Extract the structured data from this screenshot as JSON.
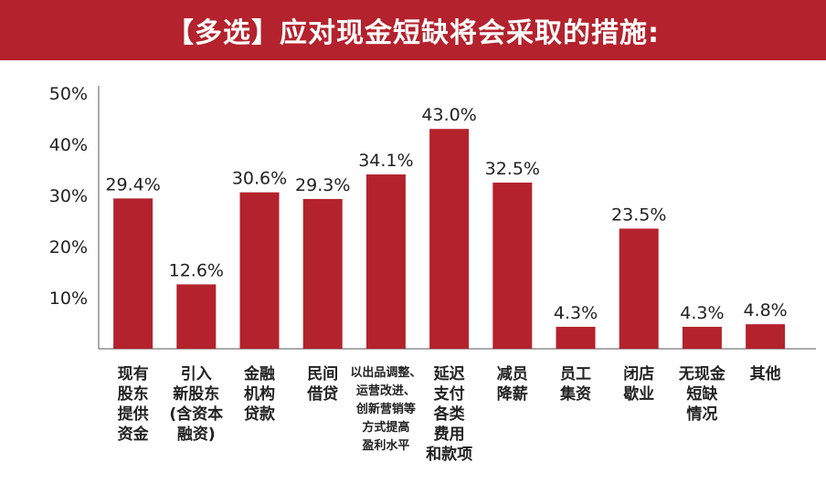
{
  "title": "【多选】应对现金短缺将会采取的措施:",
  "colors": {
    "header_bg": "#b3222d",
    "bar": "#b3222d",
    "axis": "#555555"
  },
  "chart_data": {
    "type": "bar",
    "title": "【多选】应对现金短缺将会采取的措施:",
    "xlabel": "",
    "ylabel": "",
    "ylim": [
      0,
      50
    ],
    "yticks": [
      "10%",
      "20%",
      "30%",
      "40%",
      "50%"
    ],
    "categories": [
      "现有股东提供资金",
      "引入新股东(含资本融资)",
      "金融机构贷款",
      "民间借贷",
      "以出品调整、运营改进、创新营销等方式提高盈利水平",
      "延迟支付各类费用和款项",
      "减员降薪",
      "员工集资",
      "闭店歇业",
      "无现金短缺情况",
      "其他"
    ],
    "category_lines": [
      [
        "现有",
        "股东",
        "提供",
        "资金"
      ],
      [
        "引入",
        "新股东",
        "(含资本",
        "融资)"
      ],
      [
        "金融",
        "机构",
        "贷款"
      ],
      [
        "民间",
        "借贷"
      ],
      [
        "以出品调整、",
        "运营改进、",
        "创新营销等",
        "方式提高",
        "盈利水平"
      ],
      [
        "延迟",
        "支付",
        "各类",
        "费用",
        "和款项"
      ],
      [
        "减员",
        "降薪"
      ],
      [
        "员工",
        "集资"
      ],
      [
        "闭店",
        "歇业"
      ],
      [
        "无现金",
        "短缺",
        "情况"
      ],
      [
        "其他"
      ]
    ],
    "values": [
      29.4,
      12.6,
      30.6,
      29.3,
      34.1,
      43.0,
      32.5,
      4.3,
      23.5,
      4.3,
      4.8
    ],
    "value_labels": [
      "29.4%",
      "12.6%",
      "30.6%",
      "29.3%",
      "34.1%",
      "43.0%",
      "32.5%",
      "4.3%",
      "23.5%",
      "4.3%",
      "4.8%"
    ],
    "grid": false,
    "legend": "none"
  }
}
